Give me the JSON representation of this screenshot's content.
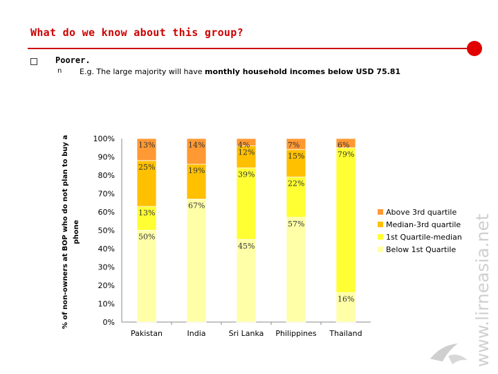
{
  "slide": {
    "title": "What do we know about this group?",
    "bullet1": "Poorer.",
    "bullet_marker": "n",
    "bullet2_prefix": "E.g. The large majority will have ",
    "bullet2_bold": "monthly household incomes below USD 75.81",
    "watermark": "www.lirneasia.net"
  },
  "colors": {
    "accent": "#cc0000",
    "dot": "#e00000"
  },
  "chart_data": {
    "type": "bar",
    "stacked": true,
    "ylabel": "% of non-owners at BOP who do not plan to buy a phone",
    "ylim": [
      0,
      100
    ],
    "yticks": [
      "0%",
      "10%",
      "20%",
      "30%",
      "40%",
      "50%",
      "60%",
      "70%",
      "80%",
      "90%",
      "100%"
    ],
    "categories": [
      "Pakistan",
      "India",
      "Sri Lanka",
      "Philippines",
      "Thailand"
    ],
    "series": [
      {
        "name": "Below 1st Quartile",
        "color": "#ffffa8",
        "values": [
          50,
          67,
          45,
          57,
          16
        ],
        "labels": [
          "50%",
          "67%",
          "45%",
          "57%",
          "16%"
        ]
      },
      {
        "name": "1st Quartile-median",
        "color": "#ffff33",
        "values": [
          13,
          0,
          39,
          22,
          79
        ],
        "labels": [
          "13%",
          "",
          "39%",
          "22%",
          "79%"
        ]
      },
      {
        "name": "Median-3rd quartile",
        "color": "#ffc000",
        "values": [
          25,
          19,
          12,
          15,
          0
        ],
        "labels": [
          "25%",
          "19%",
          "12%",
          "15%",
          ""
        ]
      },
      {
        "name": "Above 3rd quartile",
        "color": "#ff9933",
        "values": [
          13,
          14,
          4,
          7,
          6
        ],
        "labels": [
          "13%",
          "14%",
          "4%",
          "7%",
          "6%"
        ]
      }
    ],
    "legend": [
      "Above 3rd quartile",
      "Median-3rd quartile",
      "1st Quartile-median",
      "Below 1st Quartile"
    ]
  }
}
